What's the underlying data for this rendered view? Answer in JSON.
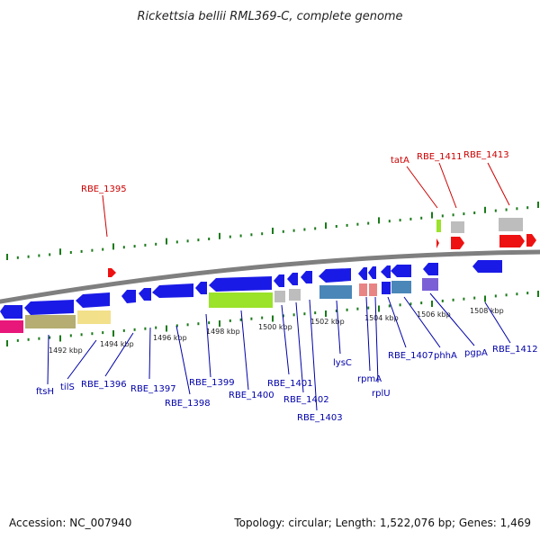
{
  "title": "Rickettsia bellii RML369-C, complete genome",
  "footer": {
    "accession": "Accession: NC_007940",
    "summary": "Topology: circular; Length: 1,522,076 bp; Genes: 1,469"
  },
  "colors": {
    "forward_label": "#cc0000",
    "reverse_label": "#0000aa",
    "backbone": "#7f7f7f",
    "tick": "#1a7a1a",
    "cds_blue": "#1a1ae6",
    "cds_red": "#ee1111",
    "gray": "#bdbdbd",
    "lime": "#9be22a",
    "olive": "#b5ad72",
    "khaki": "#f2e08a",
    "magenta": "#e8177a",
    "steel": "#4a87b8",
    "salmon": "#e98484",
    "lavender": "#7b5fd6"
  },
  "kbp_labels": [
    "1492 kbp",
    "1494 kbp",
    "1496 kbp",
    "1498 kbp",
    "1500 kbp",
    "1502 kbp",
    "1504 kbp",
    "1506 kbp",
    "1508 kbp"
  ],
  "forward_labels": [
    "RBE_1395",
    "tatA",
    "RBE_1411",
    "RBE_1413"
  ],
  "reverse_labels": [
    "ftsH",
    "tilS",
    "RBE_1396",
    "RBE_1397",
    "RBE_1398",
    "RBE_1399",
    "RBE_1400",
    "RBE_1401",
    "RBE_1402",
    "RBE_1403",
    "lysC",
    "rpmA",
    "rplU",
    "RBE_1407",
    "phhA",
    "pgpA",
    "RBE_1412"
  ]
}
